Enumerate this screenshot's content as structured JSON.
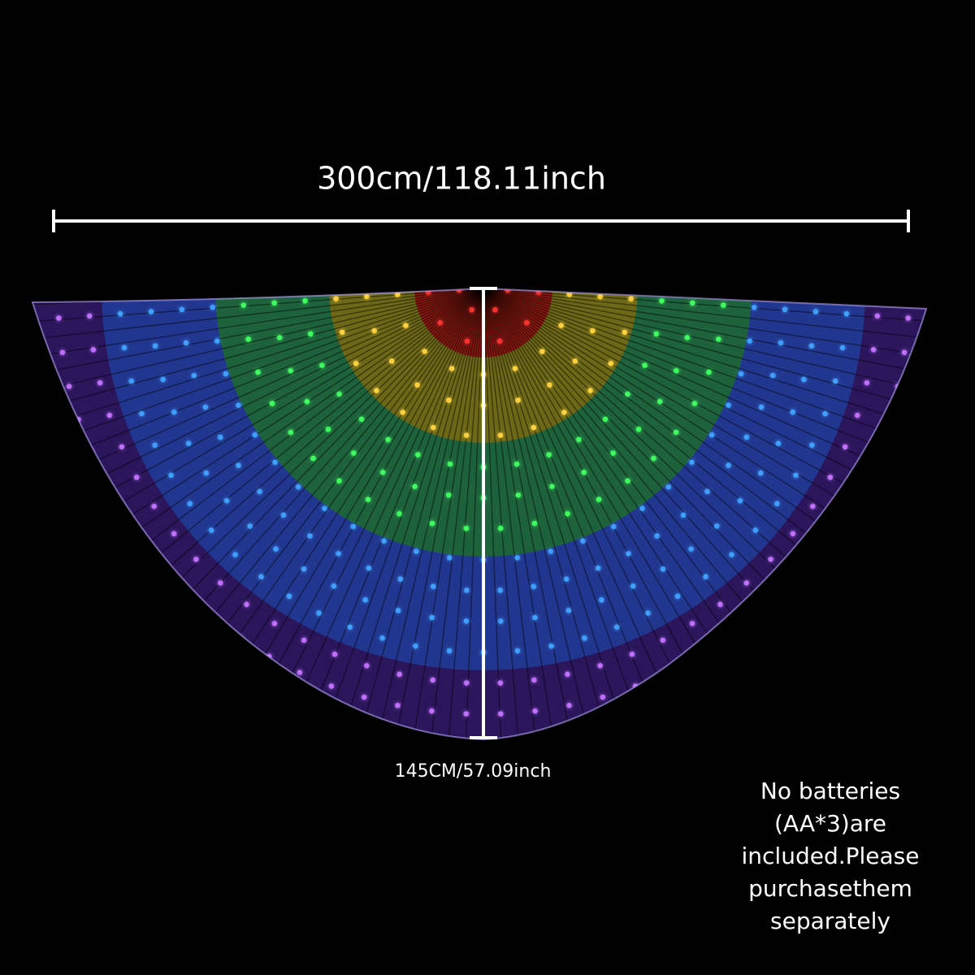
{
  "width_label": "300cm/118.11inch",
  "height_label": "145CM/57.09inch",
  "note_lines": [
    "No batteries",
    "(AA*3)are",
    "included.Please",
    "purchasethem",
    "separately"
  ]
}
